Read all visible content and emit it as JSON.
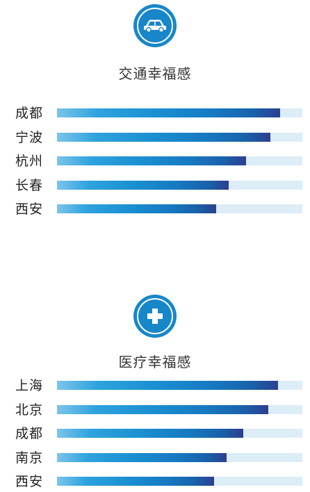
{
  "colors": {
    "icon_bg": "#1787c9",
    "bar_light": "#7cc4ea",
    "bar_dark": "#2d3f8f",
    "track": "#dcedf8"
  },
  "sections": [
    {
      "icon": "car-icon",
      "title": "交通幸福感",
      "rows": [
        {
          "label": "成都",
          "value": 0.91
        },
        {
          "label": "宁波",
          "value": 0.87
        },
        {
          "label": "杭州",
          "value": 0.77
        },
        {
          "label": "长春",
          "value": 0.7
        },
        {
          "label": "西安",
          "value": 0.65
        }
      ]
    },
    {
      "icon": "medical-cross-icon",
      "title": "医疗幸福感",
      "rows": [
        {
          "label": "上海",
          "value": 0.9
        },
        {
          "label": "北京",
          "value": 0.86
        },
        {
          "label": "成都",
          "value": 0.76
        },
        {
          "label": "南京",
          "value": 0.69
        },
        {
          "label": "西安",
          "value": 0.64
        }
      ]
    }
  ],
  "chart_data": [
    {
      "type": "bar",
      "title": "交通幸福感",
      "categories": [
        "成都",
        "宁波",
        "杭州",
        "长春",
        "西安"
      ],
      "values": [
        0.91,
        0.87,
        0.77,
        0.7,
        0.65
      ]
    },
    {
      "type": "bar",
      "title": "医疗幸福感",
      "categories": [
        "上海",
        "北京",
        "成都",
        "南京",
        "西安"
      ],
      "values": [
        0.9,
        0.86,
        0.76,
        0.69,
        0.64
      ]
    }
  ]
}
